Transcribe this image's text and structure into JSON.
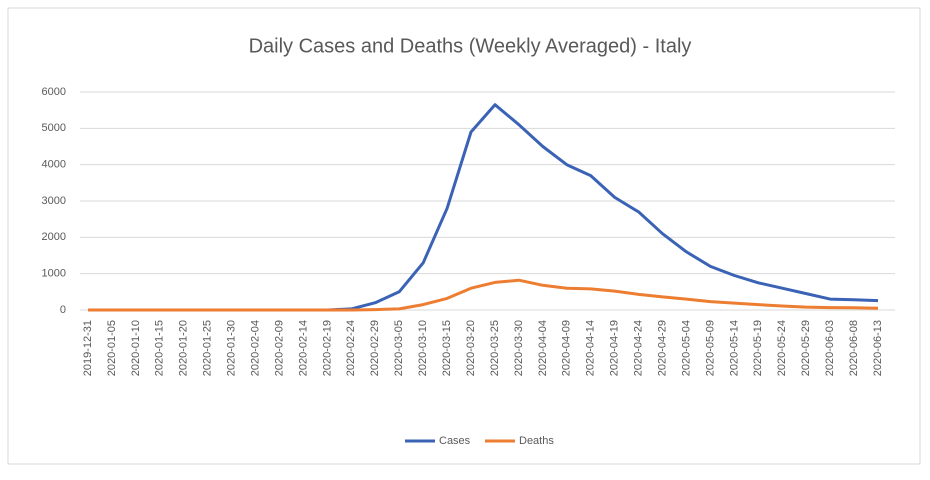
{
  "chart_data": {
    "type": "line",
    "title": "Daily Cases and Deaths (Weekly Averaged) - Italy",
    "categories": [
      "2019-12-31",
      "2020-01-05",
      "2020-01-10",
      "2020-01-15",
      "2020-01-20",
      "2020-01-25",
      "2020-01-30",
      "2020-02-04",
      "2020-02-09",
      "2020-02-14",
      "2020-02-19",
      "2020-02-24",
      "2020-02-29",
      "2020-03-05",
      "2020-03-10",
      "2020-03-15",
      "2020-03-20",
      "2020-03-25",
      "2020-03-30",
      "2020-04-04",
      "2020-04-09",
      "2020-04-14",
      "2020-04-19",
      "2020-04-24",
      "2020-04-29",
      "2020-05-04",
      "2020-05-09",
      "2020-05-14",
      "2020-05-19",
      "2020-05-24",
      "2020-05-29",
      "2020-06-03",
      "2020-06-08",
      "2020-06-13"
    ],
    "series": [
      {
        "name": "Cases",
        "color": "#3a62b5",
        "values": [
          0,
          0,
          0,
          0,
          0,
          0,
          0,
          0,
          0,
          0,
          0,
          30,
          200,
          500,
          1300,
          2800,
          4900,
          5650,
          5100,
          4500,
          4000,
          3700,
          3100,
          2700,
          2100,
          1600,
          1200,
          950,
          750,
          600,
          450,
          300,
          280,
          260
        ]
      },
      {
        "name": "Deaths",
        "color": "#ed7d31",
        "values": [
          0,
          0,
          0,
          0,
          0,
          0,
          0,
          0,
          0,
          0,
          0,
          0,
          10,
          30,
          150,
          320,
          600,
          760,
          820,
          680,
          600,
          580,
          520,
          430,
          360,
          300,
          230,
          190,
          150,
          110,
          80,
          65,
          60,
          50
        ]
      }
    ],
    "ylim": [
      0,
      6000
    ],
    "yticks": [
      0,
      1000,
      2000,
      3000,
      4000,
      5000,
      6000
    ],
    "grid": true,
    "legend": "bottom"
  }
}
